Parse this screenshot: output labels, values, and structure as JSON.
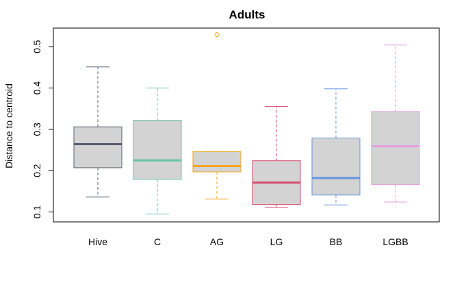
{
  "chart_data": {
    "type": "boxplot",
    "title": "Adults",
    "xlabel": "",
    "ylabel": "Distance to centroid",
    "ylim": [
      0.076,
      0.545
    ],
    "yticks": [
      0.1,
      0.2,
      0.3,
      0.4,
      0.5
    ],
    "ytick_labels": [
      "0.1",
      "0.2",
      "0.3",
      "0.4",
      "0.5"
    ],
    "grid": false,
    "legend": "none",
    "categories": [
      "Hive",
      "C",
      "AG",
      "LG",
      "BB",
      "LGBB"
    ],
    "boxes": [
      {
        "name": "Hive",
        "color": "#555b6e",
        "min": 0.136,
        "q1": 0.207,
        "median": 0.264,
        "q3": 0.306,
        "max": 0.451,
        "outliers": []
      },
      {
        "name": "C",
        "color": "#62c4a0",
        "min": 0.095,
        "q1": 0.179,
        "median": 0.225,
        "q3": 0.322,
        "max": 0.4,
        "outliers": []
      },
      {
        "name": "AG",
        "color": "#f5a623",
        "min": 0.131,
        "q1": 0.197,
        "median": 0.211,
        "q3": 0.246,
        "max": 0.246,
        "outliers": [
          0.529
        ]
      },
      {
        "name": "LG",
        "color": "#d64b6b",
        "min": 0.111,
        "q1": 0.118,
        "median": 0.171,
        "q3": 0.224,
        "max": 0.355,
        "outliers": []
      },
      {
        "name": "BB",
        "color": "#6195e0",
        "min": 0.117,
        "q1": 0.141,
        "median": 0.182,
        "q3": 0.279,
        "max": 0.398,
        "outliers": []
      },
      {
        "name": "LGBB",
        "color": "#e59ee0",
        "min": 0.124,
        "q1": 0.166,
        "median": 0.259,
        "q3": 0.343,
        "max": 0.504,
        "outliers": []
      }
    ],
    "box_fill": "#d3d3d3"
  }
}
